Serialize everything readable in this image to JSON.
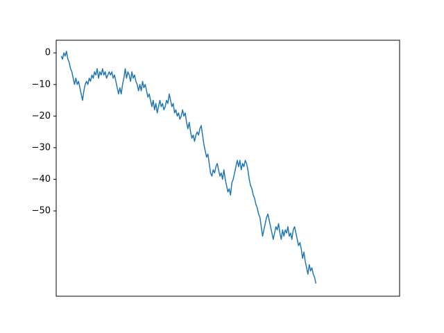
{
  "chart_data": {
    "type": "line",
    "title": "",
    "xlabel": "",
    "ylabel": "",
    "xlim": [
      -15,
      1015
    ],
    "ylim": [
      -77,
      4
    ],
    "x_ticks_visible": false,
    "y_ticks": [
      0,
      -10,
      -20,
      -30,
      -40,
      -50
    ],
    "y_tick_labels": [
      "0",
      "−10",
      "−20",
      "−30",
      "−40",
      "−50"
    ],
    "grid": false,
    "legend": "none",
    "series": [
      {
        "color": "#1f77b4",
        "points": [
          [
            0,
            -1
          ],
          [
            4,
            -2
          ],
          [
            8,
            0
          ],
          [
            12,
            -1
          ],
          [
            16,
            0.5
          ],
          [
            20,
            -2
          ],
          [
            24,
            -3
          ],
          [
            28,
            -5
          ],
          [
            32,
            -6
          ],
          [
            36,
            -8
          ],
          [
            40,
            -10
          ],
          [
            44,
            -8
          ],
          [
            48,
            -10
          ],
          [
            52,
            -9
          ],
          [
            56,
            -11
          ],
          [
            60,
            -13
          ],
          [
            64,
            -15
          ],
          [
            68,
            -12
          ],
          [
            72,
            -10
          ],
          [
            76,
            -9
          ],
          [
            80,
            -10
          ],
          [
            84,
            -8
          ],
          [
            88,
            -9
          ],
          [
            92,
            -7
          ],
          [
            96,
            -8
          ],
          [
            100,
            -6
          ],
          [
            104,
            -7
          ],
          [
            108,
            -5
          ],
          [
            112,
            -8
          ],
          [
            116,
            -6
          ],
          [
            120,
            -7
          ],
          [
            124,
            -5
          ],
          [
            128,
            -7
          ],
          [
            132,
            -6
          ],
          [
            136,
            -8
          ],
          [
            140,
            -7
          ],
          [
            144,
            -6
          ],
          [
            148,
            -7
          ],
          [
            152,
            -6
          ],
          [
            156,
            -8
          ],
          [
            160,
            -7
          ],
          [
            164,
            -9
          ],
          [
            168,
            -11
          ],
          [
            172,
            -13
          ],
          [
            176,
            -11
          ],
          [
            180,
            -13
          ],
          [
            184,
            -10
          ],
          [
            188,
            -8
          ],
          [
            192,
            -5
          ],
          [
            196,
            -8
          ],
          [
            200,
            -6
          ],
          [
            204,
            -7
          ],
          [
            208,
            -9
          ],
          [
            212,
            -6
          ],
          [
            216,
            -8
          ],
          [
            220,
            -7
          ],
          [
            224,
            -9
          ],
          [
            228,
            -10
          ],
          [
            232,
            -12
          ],
          [
            236,
            -10
          ],
          [
            240,
            -12
          ],
          [
            244,
            -9
          ],
          [
            248,
            -11
          ],
          [
            252,
            -10
          ],
          [
            256,
            -12
          ],
          [
            260,
            -14
          ],
          [
            264,
            -13
          ],
          [
            268,
            -15
          ],
          [
            272,
            -17
          ],
          [
            276,
            -15
          ],
          [
            280,
            -18
          ],
          [
            284,
            -16
          ],
          [
            288,
            -19
          ],
          [
            292,
            -17
          ],
          [
            296,
            -15
          ],
          [
            300,
            -17
          ],
          [
            304,
            -16
          ],
          [
            308,
            -18
          ],
          [
            312,
            -17
          ],
          [
            316,
            -15
          ],
          [
            320,
            -16
          ],
          [
            324,
            -13
          ],
          [
            328,
            -15
          ],
          [
            332,
            -17
          ],
          [
            336,
            -16
          ],
          [
            340,
            -19
          ],
          [
            344,
            -18
          ],
          [
            348,
            -20
          ],
          [
            352,
            -19
          ],
          [
            356,
            -21
          ],
          [
            360,
            -20
          ],
          [
            364,
            -18
          ],
          [
            368,
            -20
          ],
          [
            372,
            -19
          ],
          [
            376,
            -22
          ],
          [
            380,
            -24
          ],
          [
            384,
            -22
          ],
          [
            388,
            -25
          ],
          [
            392,
            -27
          ],
          [
            396,
            -26
          ],
          [
            400,
            -28
          ],
          [
            404,
            -26
          ],
          [
            408,
            -25
          ],
          [
            412,
            -26
          ],
          [
            416,
            -24
          ],
          [
            420,
            -23
          ],
          [
            424,
            -26
          ],
          [
            428,
            -29
          ],
          [
            432,
            -31
          ],
          [
            436,
            -33
          ],
          [
            440,
            -32
          ],
          [
            444,
            -35
          ],
          [
            448,
            -38
          ],
          [
            452,
            -39
          ],
          [
            456,
            -37
          ],
          [
            460,
            -38
          ],
          [
            464,
            -36
          ],
          [
            468,
            -35
          ],
          [
            472,
            -37
          ],
          [
            476,
            -39
          ],
          [
            480,
            -38
          ],
          [
            484,
            -40
          ],
          [
            488,
            -37
          ],
          [
            492,
            -40
          ],
          [
            496,
            -42
          ],
          [
            500,
            -44
          ],
          [
            504,
            -43
          ],
          [
            508,
            -45
          ],
          [
            512,
            -41
          ],
          [
            516,
            -40
          ],
          [
            520,
            -38
          ],
          [
            524,
            -36
          ],
          [
            528,
            -34
          ],
          [
            532,
            -36
          ],
          [
            536,
            -34
          ],
          [
            540,
            -37
          ],
          [
            544,
            -35
          ],
          [
            548,
            -36
          ],
          [
            552,
            -34
          ],
          [
            556,
            -35
          ],
          [
            560,
            -37
          ],
          [
            564,
            -40
          ],
          [
            568,
            -42
          ],
          [
            572,
            -43
          ],
          [
            576,
            -45
          ],
          [
            580,
            -46
          ],
          [
            584,
            -48
          ],
          [
            588,
            -49
          ],
          [
            592,
            -51
          ],
          [
            596,
            -52
          ],
          [
            600,
            -55
          ],
          [
            604,
            -58
          ],
          [
            608,
            -56
          ],
          [
            612,
            -54
          ],
          [
            616,
            -52
          ],
          [
            620,
            -51
          ],
          [
            624,
            -53
          ],
          [
            628,
            -55
          ],
          [
            632,
            -57
          ],
          [
            636,
            -59
          ],
          [
            640,
            -57
          ],
          [
            644,
            -55
          ],
          [
            648,
            -56
          ],
          [
            652,
            -54
          ],
          [
            656,
            -57
          ],
          [
            660,
            -59
          ],
          [
            664,
            -56
          ],
          [
            668,
            -58
          ],
          [
            672,
            -56
          ],
          [
            676,
            -57
          ],
          [
            680,
            -55
          ],
          [
            684,
            -58
          ],
          [
            688,
            -57
          ],
          [
            692,
            -59
          ],
          [
            696,
            -56
          ],
          [
            700,
            -55
          ],
          [
            704,
            -57
          ],
          [
            708,
            -59
          ],
          [
            712,
            -61
          ],
          [
            716,
            -60
          ],
          [
            720,
            -62
          ],
          [
            724,
            -65
          ],
          [
            728,
            -63
          ],
          [
            732,
            -66
          ],
          [
            736,
            -68
          ],
          [
            740,
            -70
          ],
          [
            744,
            -67
          ],
          [
            748,
            -69
          ],
          [
            752,
            -68
          ],
          [
            756,
            -70
          ],
          [
            760,
            -71
          ],
          [
            764,
            -73
          ]
        ]
      }
    ]
  }
}
